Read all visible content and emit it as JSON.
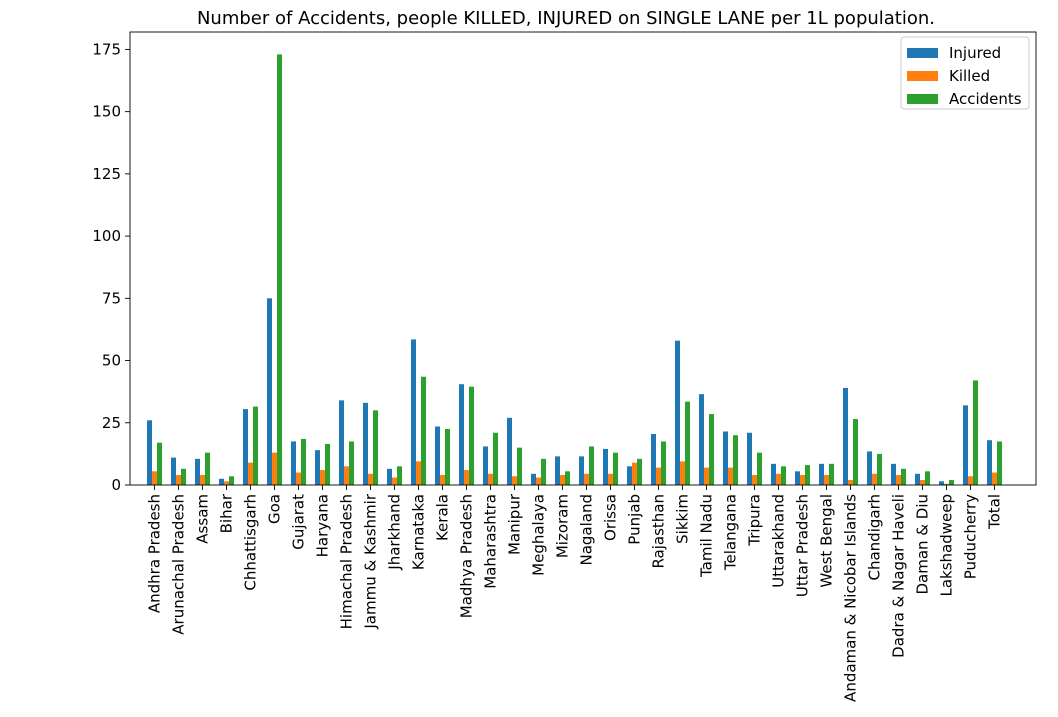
{
  "chart_data": {
    "type": "bar",
    "title": "Number of Accidents, people KILLED, INJURED on SINGLE LANE per 1L population.",
    "xlabel": "",
    "ylabel": "",
    "ylim": [
      0,
      182
    ],
    "yticks": [
      0,
      25,
      50,
      75,
      100,
      125,
      150,
      175
    ],
    "grid": false,
    "legend_position": "top-right",
    "categories": [
      "Andhra Pradesh",
      "Arunachal Pradesh",
      "Assam",
      "Bihar",
      "Chhattisgarh",
      "Goa",
      "Gujarat",
      "Haryana",
      "Himachal Pradesh",
      "Jammu & Kashmir",
      "Jharkhand",
      "Karnataka",
      "Kerala",
      "Madhya Pradesh",
      "Maharashtra",
      "Manipur",
      "Meghalaya",
      "Mizoram",
      "Nagaland",
      "Orissa",
      "Punjab",
      "Rajasthan",
      "Sikkim",
      "Tamil Nadu",
      "Telangana",
      "Tripura",
      "Uttarakhand",
      "Uttar Pradesh",
      "West Bengal",
      "Andaman & Nicobar Islands",
      "Chandigarh",
      "Dadra & Nagar Haveli",
      "Daman & Diu",
      "Lakshadweep",
      "Puducherry",
      "Total"
    ],
    "series": [
      {
        "name": "Injured",
        "color": "#1f77b4",
        "values": [
          26,
          11,
          10.5,
          2.5,
          30.5,
          75,
          17.5,
          14,
          34,
          33,
          6.5,
          58.5,
          23.5,
          40.5,
          15.5,
          27,
          4.5,
          11.5,
          11.5,
          14.5,
          7.5,
          20.5,
          58,
          36.5,
          21.5,
          21,
          8.5,
          5.5,
          8.5,
          39,
          13.5,
          8.5,
          4.5,
          1.5,
          32,
          18
        ]
      },
      {
        "name": "Killed",
        "color": "#ff7f0e",
        "values": [
          5.5,
          4,
          4,
          1.5,
          9,
          13,
          5,
          6,
          7.5,
          4.5,
          3,
          9.5,
          4,
          6,
          4.5,
          3.5,
          3,
          4,
          4.5,
          4.5,
          9,
          7,
          9.5,
          7,
          7,
          4,
          4.5,
          4,
          4,
          2,
          4.5,
          4,
          2,
          0.5,
          3.5,
          5
        ]
      },
      {
        "name": "Accidents",
        "color": "#2ca02c",
        "values": [
          17,
          6.5,
          13,
          3.5,
          31.5,
          173,
          18.5,
          16.5,
          17.5,
          30,
          7.5,
          43.5,
          22.5,
          39.5,
          21,
          15,
          10.5,
          5.5,
          15.5,
          13,
          10.5,
          17.5,
          33.5,
          28.5,
          20,
          13,
          7.5,
          8,
          8.5,
          26.5,
          12.5,
          6.5,
          5.5,
          2,
          42,
          17.5
        ]
      }
    ]
  }
}
